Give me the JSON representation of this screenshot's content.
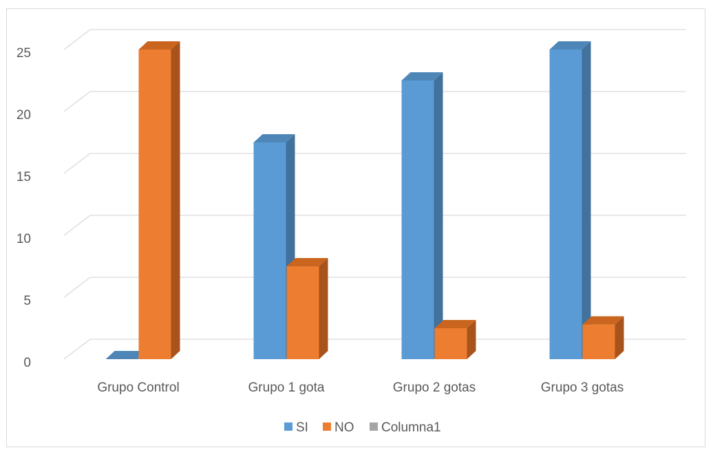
{
  "chart_data": {
    "type": "bar",
    "style": "3d-clustered-column",
    "categories": [
      "Grupo Control",
      "Grupo 1 gota",
      "Grupo 2 gotas",
      "Grupo 3 gotas"
    ],
    "series": [
      {
        "name": "SI",
        "values": [
          0,
          17.5,
          22.5,
          25
        ],
        "color": "#5b9bd5",
        "side_color": "#41719c",
        "top_color": "#4f86b8"
      },
      {
        "name": "NO",
        "values": [
          25,
          7.5,
          2.5,
          2.8
        ],
        "color": "#ed7d31",
        "side_color": "#a9531c",
        "top_color": "#c9651f"
      },
      {
        "name": "Columna1",
        "values": [
          0,
          0,
          0,
          0
        ],
        "color": "#a5a5a5",
        "side_color": "#7b7b7b",
        "top_color": "#8f8f8f"
      }
    ],
    "ylim": [
      0,
      25
    ],
    "yticks": [
      "0",
      "5",
      "10",
      "15",
      "20",
      "25"
    ],
    "grid": true,
    "legend_position": "bottom",
    "title": "",
    "xlabel": "",
    "ylabel": ""
  }
}
